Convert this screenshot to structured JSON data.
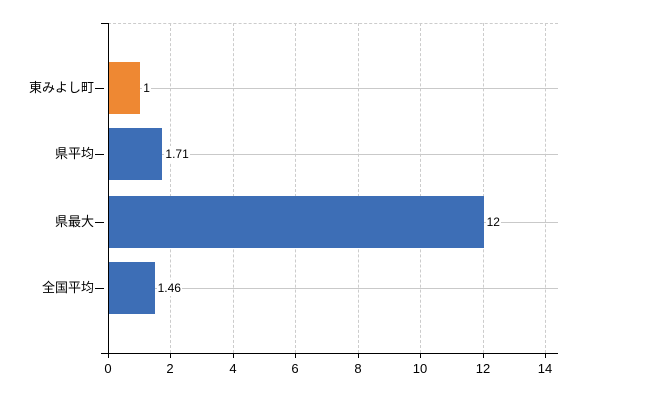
{
  "chart_data": {
    "type": "bar",
    "orientation": "horizontal",
    "title": "",
    "categories": [
      "東みよし町",
      "県平均",
      "県最大",
      "全国平均"
    ],
    "values": [
      1,
      1.71,
      12,
      1.46
    ],
    "value_labels": [
      "1",
      "1.71",
      "12",
      "1.46"
    ],
    "series_colors": [
      "#ee8833",
      "#3d6eb6",
      "#3d6eb6",
      "#3d6eb6"
    ],
    "highlight_color": "#ee8833",
    "default_bar_color": "#3d6eb6",
    "x_ticks": [
      "0",
      "2",
      "4",
      "6",
      "8",
      "10",
      "12",
      "14"
    ],
    "x_tick_values": [
      0,
      2,
      4,
      6,
      8,
      10,
      12,
      14
    ],
    "xlim": [
      0,
      14.42
    ],
    "grid": {
      "vertical": true,
      "style": "dashed",
      "color": "#cccccc"
    },
    "leader_line_color": "#c9c9c9",
    "axis_color": "#000000",
    "text_color": "#000000",
    "background": "#ffffff",
    "legend": null
  }
}
